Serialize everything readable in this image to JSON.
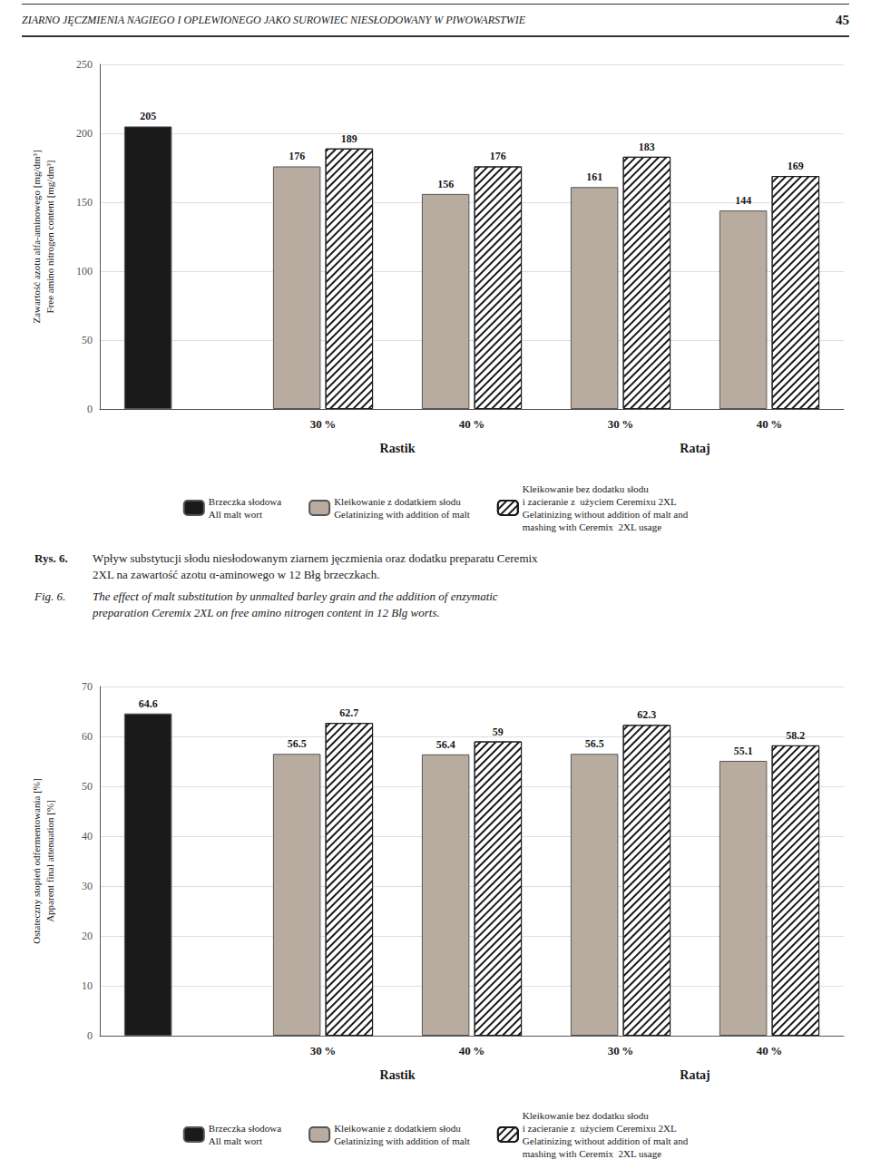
{
  "header": {
    "text": "ZIARNO JĘCZMIENIA NAGIEGO I OPLEWIONEGO JAKO SUROWIEC NIESŁODOWANY W PIWOWARSTWIE",
    "page_number": "45"
  },
  "captions": [
    {
      "label": "Rys. 6.",
      "lines": [
        "Wpływ substytucji słodu niesłodowanym ziarnem jęczmienia oraz dodatku preparatu Ceremix",
        "2XL na zawartość azotu α-aminowego w 12 Błg brzeczkach."
      ]
    },
    {
      "label": "Fig. 6.",
      "lines": [
        "The effect of malt substitution by unmalted barley grain and the addition of enzymatic",
        "preparation Ceremix 2XL on free amino nitrogen content in 12 Blg worts."
      ]
    }
  ],
  "chart_data": [
    {
      "type": "bar",
      "ylabel": "Zawartość azotu alfa-aminowego [mg/dm³]\nFree amino nitrogen content [mg/dm³]",
      "categories": [
        null,
        "30 %",
        "40 %",
        "30 %",
        "40 %"
      ],
      "annotations": [
        "Rastik",
        "Rataj"
      ],
      "series": [
        {
          "name": "Brzeczka słodowa\nAll malt wort",
          "color": "#1a1a1a",
          "values": [
            205,
            null,
            null,
            null,
            null
          ]
        },
        {
          "name": "Kleikowanie z dodatkiem słodu\nGelatinizing with addition of malt",
          "color": "#b8aca0",
          "values": [
            null,
            176,
            156,
            161,
            144
          ]
        },
        {
          "name": "Kleikowanie bez dodatku słodu\ni zacieranie z  użyciem Ceremixu 2XL\nGelatinizing without addition of malt and\nmashing with Ceremix  2XL usage",
          "color": "#ffffff",
          "values": [
            null,
            189,
            176,
            183,
            169
          ]
        }
      ],
      "ylim": [
        0,
        250
      ],
      "yticks": [
        0,
        50,
        100,
        150,
        200,
        250
      ],
      "grid": true,
      "data_labels": true
    },
    {
      "type": "bar",
      "ylabel": "Ostateczny stopień odfermentowania [%]\nApparent final attenuation [%]",
      "categories": [
        null,
        "30 %",
        "40 %",
        "30 %",
        "40 %"
      ],
      "annotations": [
        "Rastik",
        "Rataj"
      ],
      "series": [
        {
          "name": "Brzeczka słodowa\nAll malt wort",
          "color": "#1a1a1a",
          "values": [
            64.6,
            null,
            null,
            null,
            null
          ]
        },
        {
          "name": "Kleikowanie z dodatkiem słodu\nGelatinizing with addition of malt",
          "color": "#b8aca0",
          "values": [
            null,
            56.5,
            56.4,
            56.5,
            55.1
          ]
        },
        {
          "name": "Kleikowanie bez dodatku słodu\ni zacieranie z  użyciem Ceremixu 2XL\nGelatinizing without addition of malt and\nmashing with Ceremix  2XL usage",
          "color": "#ffffff",
          "values": [
            null,
            62.7,
            59.0,
            62.3,
            58.2
          ]
        }
      ],
      "ylim": [
        0,
        70
      ],
      "yticks": [
        0,
        10,
        20,
        30,
        40,
        50,
        60,
        70
      ],
      "grid": true,
      "data_labels": true
    }
  ]
}
